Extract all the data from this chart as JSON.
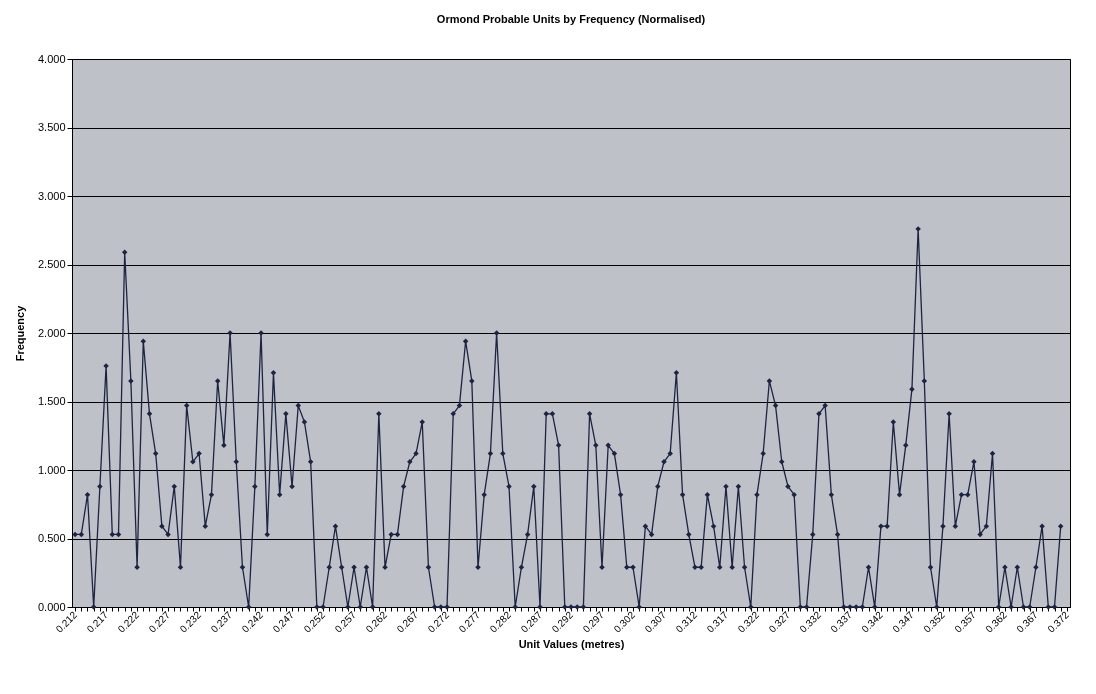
{
  "chart_data": {
    "type": "line",
    "title": "Ormond Probable Units by Frequency (Normalised)",
    "xlabel": "Unit Values (metres)",
    "ylabel": "Frequency",
    "categories": [
      "0.212",
      null,
      null,
      null,
      null,
      "0.217",
      null,
      null,
      null,
      null,
      "0.222",
      null,
      null,
      null,
      null,
      "0.227",
      null,
      null,
      null,
      null,
      "0.232",
      null,
      null,
      null,
      null,
      "0.237",
      null,
      null,
      null,
      null,
      "0.242",
      null,
      null,
      null,
      null,
      "0.247",
      null,
      null,
      null,
      null,
      "0.252",
      null,
      null,
      null,
      null,
      "0.257",
      null,
      null,
      null,
      null,
      "0.262",
      null,
      null,
      null,
      null,
      "0.267",
      null,
      null,
      null,
      null,
      "0.272",
      null,
      null,
      null,
      null,
      "0.277",
      null,
      null,
      null,
      null,
      "0.282",
      null,
      null,
      null,
      null,
      "0.287",
      null,
      null,
      null,
      null,
      "0.292",
      null,
      null,
      null,
      null,
      "0.297",
      null,
      null,
      null,
      null,
      "0.302",
      null,
      null,
      null,
      null,
      "0.307",
      null,
      null,
      null,
      null,
      "0.312",
      null,
      null,
      null,
      null,
      "0.317",
      null,
      null,
      null,
      null,
      "0.322",
      null,
      null,
      null,
      null,
      "0.327",
      null,
      null,
      null,
      null,
      "0.332",
      null,
      null,
      null,
      null,
      "0.337",
      null,
      null,
      null,
      null,
      "0.342",
      null,
      null,
      null,
      null,
      "0.347",
      null,
      null,
      null,
      null,
      "0.352",
      null,
      null,
      null,
      null,
      "0.357",
      null,
      null,
      null,
      null,
      "0.362",
      null,
      null,
      null,
      null,
      "0.367",
      null,
      null,
      null,
      null,
      "0.372"
    ],
    "values": [
      0.53,
      0.53,
      0.82,
      0,
      0.88,
      1.76,
      0.53,
      0.53,
      2.59,
      1.65,
      0.29,
      1.94,
      1.41,
      1.12,
      0.59,
      0.53,
      0.88,
      0.29,
      1.47,
      1.06,
      1.12,
      0.59,
      0.82,
      1.65,
      1.18,
      2.0,
      1.06,
      0.29,
      0,
      0.88,
      2.0,
      0.53,
      1.71,
      0.82,
      1.41,
      0.88,
      1.47,
      1.35,
      1.06,
      0,
      0,
      0.29,
      0.59,
      0.29,
      0,
      0.29,
      0,
      0.29,
      0,
      1.41,
      0.29,
      0.53,
      0.53,
      0.88,
      1.06,
      1.12,
      1.35,
      0.29,
      0,
      0,
      0,
      1.41,
      1.47,
      1.94,
      1.65,
      0.29,
      0.82,
      1.12,
      2.0,
      1.12,
      0.88,
      0,
      0.29,
      0.53,
      0.88,
      0,
      1.41,
      1.41,
      1.18,
      0,
      0,
      0,
      0,
      1.41,
      1.18,
      0.29,
      1.18,
      1.12,
      0.82,
      0.29,
      0.29,
      0,
      0.59,
      0.53,
      0.88,
      1.06,
      1.12,
      1.71,
      0.82,
      0.53,
      0.29,
      0.29,
      0.82,
      0.59,
      0.29,
      0.88,
      0.29,
      0.88,
      0.29,
      0,
      0.82,
      1.12,
      1.65,
      1.47,
      1.06,
      0.88,
      0.82,
      0,
      0,
      0.53,
      1.41,
      1.47,
      0.82,
      0.53,
      0,
      0,
      0,
      0,
      0.29,
      0,
      0.59,
      0.59,
      1.35,
      0.82,
      1.18,
      1.59,
      2.76,
      1.65,
      0.29,
      0,
      0.59,
      1.41,
      0.59,
      0.82,
      0.82,
      1.06,
      0.53,
      0.59,
      1.12,
      0,
      0.29,
      0,
      0.29,
      0,
      0,
      0.29,
      0.59,
      0,
      0,
      0.59,
      null
    ],
    "color": "#1c2443",
    "ylim": [
      0,
      4
    ],
    "yticks": [
      {
        "value": 0,
        "label": "0.000"
      },
      {
        "value": 0.5,
        "label": "0.500"
      },
      {
        "value": 1,
        "label": "1.000"
      },
      {
        "value": 1.5,
        "label": "1.500"
      },
      {
        "value": 2,
        "label": "2.000"
      },
      {
        "value": 2.5,
        "label": "2.500"
      },
      {
        "value": 3,
        "label": "3.000"
      },
      {
        "value": 3.5,
        "label": "3.500"
      },
      {
        "value": 4,
        "label": "4.000"
      }
    ],
    "grid": "y",
    "marker": "diamond"
  }
}
